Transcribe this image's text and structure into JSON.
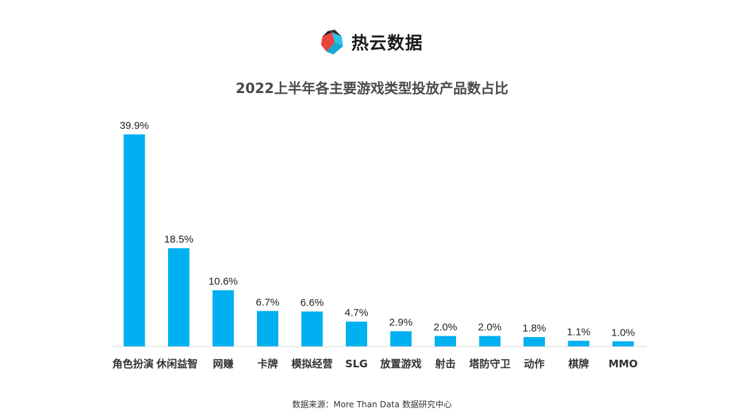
{
  "brand": {
    "name": "热云数据",
    "logo_icon": "reyun-logo-icon"
  },
  "chart_data": {
    "type": "bar",
    "title": "2022上半年各主要游戏类型投放产品数占比",
    "xlabel": "",
    "ylabel": "",
    "ylim": [
      0,
      40
    ],
    "grid": false,
    "categories": [
      "角色扮演",
      "休闲益智",
      "网赚",
      "卡牌",
      "模拟经营",
      "SLG",
      "放置游戏",
      "射击",
      "塔防守卫",
      "动作",
      "棋牌",
      "MMO"
    ],
    "values": [
      39.9,
      18.5,
      10.6,
      6.7,
      6.6,
      4.7,
      2.9,
      2.0,
      2.0,
      1.8,
      1.1,
      1.0
    ],
    "value_labels": [
      "39.9%",
      "18.5%",
      "10.6%",
      "6.7%",
      "6.6%",
      "4.7%",
      "2.9%",
      "2.0%",
      "2.0%",
      "1.8%",
      "1.1%",
      "1.0%"
    ],
    "bar_color": "#00b0f0",
    "axis_color": "#d9d9d9"
  },
  "source": "数据来源：More Than Data 数据研究中心"
}
